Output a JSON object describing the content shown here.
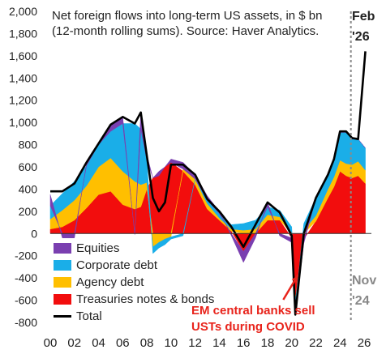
{
  "chart_data": {
    "type": "area",
    "description": "Net foreign flows into long-term US assets, in $ bn (12-month rolling sums). Source:  Haver Analytics.",
    "x_tick_labels": [
      "00",
      "02",
      "04",
      "06",
      "08",
      "10",
      "12",
      "14",
      "16",
      "18",
      "20",
      "22",
      "24",
      "26"
    ],
    "y_tick_labels": [
      "2,000",
      "1,800",
      "1,600",
      "1,400",
      "1,200",
      "1,000",
      "800",
      "600",
      "400",
      "200",
      "0",
      "-200",
      "-400",
      "-600",
      "-800"
    ],
    "ylim": [
      -800,
      2000
    ],
    "xlim": [
      2000,
      2026.6
    ],
    "x": [
      2000,
      2001,
      2002,
      2003,
      2004,
      2005,
      2006,
      2007,
      2007.5,
      2008,
      2008.5,
      2009,
      2009.5,
      2010,
      2011,
      2012,
      2013,
      2014,
      2015,
      2016,
      2017,
      2018,
      2019,
      2020,
      2020.3,
      2021,
      2022,
      2023,
      2023.5,
      2024,
      2024.5,
      2025,
      2025.5,
      2026.1
    ],
    "series": [
      {
        "name": "Treasuries notes & bonds",
        "color": "#f20d0d",
        "values": [
          40,
          60,
          120,
          230,
          350,
          380,
          260,
          220,
          240,
          400,
          500,
          520,
          600,
          640,
          560,
          440,
          220,
          120,
          20,
          -160,
          0,
          120,
          120,
          -40,
          -600,
          -50,
          110,
          320,
          420,
          560,
          520,
          500,
          520,
          450
        ]
      },
      {
        "name": "Agency debt",
        "color": "#ffbf00",
        "values": [
          90,
          150,
          180,
          200,
          250,
          300,
          300,
          250,
          200,
          60,
          -120,
          -80,
          -50,
          -30,
          20,
          50,
          50,
          20,
          20,
          30,
          40,
          50,
          30,
          10,
          -10,
          30,
          50,
          80,
          90,
          100,
          110,
          120,
          130,
          120
        ]
      },
      {
        "name": "Corporate debt",
        "color": "#1aaee8",
        "values": [
          120,
          150,
          170,
          180,
          200,
          240,
          430,
          520,
          500,
          200,
          -60,
          -50,
          -50,
          -20,
          -20,
          0,
          30,
          40,
          40,
          60,
          80,
          70,
          60,
          50,
          -40,
          60,
          160,
          120,
          150,
          250,
          280,
          230,
          200,
          200
        ]
      },
      {
        "name": "Equities",
        "color": "#7a3fb0",
        "values": [
          100,
          -40,
          -40,
          20,
          10,
          60,
          60,
          -10,
          150,
          50,
          0,
          40,
          0,
          30,
          60,
          40,
          40,
          20,
          -20,
          -100,
          -40,
          40,
          -20,
          -40,
          -80,
          -40,
          0,
          10,
          10,
          10,
          10,
          10,
          0,
          0
        ]
      },
      {
        "name": "Total",
        "color": "#000000",
        "values": [
          380,
          380,
          450,
          640,
          810,
          980,
          1050,
          990,
          1090,
          700,
          320,
          200,
          280,
          620,
          620,
          530,
          310,
          200,
          60,
          -120,
          80,
          280,
          190,
          -20,
          -730,
          0,
          320,
          530,
          670,
          920,
          920,
          860,
          850,
          1640
        ]
      }
    ],
    "legend": {
      "position": "bottom-left",
      "entries": [
        "Equities",
        "Corporate debt",
        "Agency debt",
        "Treasuries notes & bonds",
        "Total"
      ]
    },
    "annotations": {
      "feb": [
        "Feb",
        "'26"
      ],
      "nov": [
        "Nov",
        "'24"
      ],
      "em": [
        "EM central banks sell",
        "USTs during COVID"
      ]
    },
    "vline_x": 2024.9,
    "arrow": {
      "from_x": 2019.3,
      "to_x": 2020.5,
      "label": "EM central banks sell USTs during COVID"
    }
  }
}
